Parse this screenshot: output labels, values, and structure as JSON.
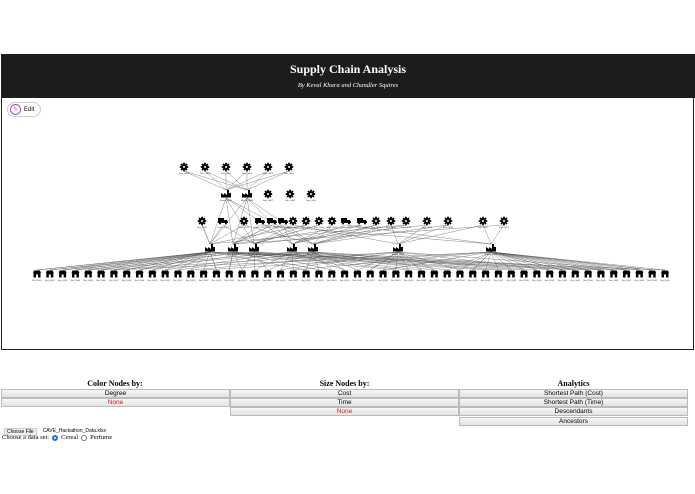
{
  "header": {
    "title": "Supply Chain Analysis",
    "subtitle": "By Keval Khara and Chandler Squires"
  },
  "graph": {
    "edit_label": "Edit",
    "layers": [
      {
        "icon": "gear-icon",
        "labels": [
          "Sup_0001",
          "Sup_0002",
          "Sup_0003",
          "Sup_0004",
          "Sup_0005",
          "Sup_0006"
        ]
      },
      {
        "icon": "mixed",
        "labels": [
          "Manuf_0001",
          "Manuf_0002",
          "Sup_0007",
          "Sup_0008",
          "Sup_0009"
        ]
      },
      {
        "icon": "mixed",
        "labels": [
          "Sup_0010",
          "Trans_0001",
          "Sup_0011",
          "Trans_0002",
          "Trans_0003",
          "Trans_0004",
          "Sup_0012",
          "Sup_0013",
          "Sup_0014",
          "Sup_0015",
          "Trans_0005",
          "Trans_0006",
          "Sup_0016",
          "Sup_0017",
          "Sup_0018",
          "Sup_0019",
          "Sup_0020",
          "Sup_0021",
          "Sup_0022",
          "Sup_0023",
          "Sup_0024"
        ]
      },
      {
        "icon": "factory-icon",
        "labels": [
          "Manuf_0003",
          "Manuf_0004",
          "Manuf_0005",
          "Manuf_0006",
          "Manuf_0007",
          "Manuf_0008",
          "Manuf_0009"
        ]
      },
      {
        "icon": "retail-icon",
        "labels": [
          "Ret_0001",
          "Ret_0002",
          "Ret_0003",
          "Ret_0004",
          "Ret_0005",
          "Ret_0006",
          "Ret_0007",
          "Ret_0008",
          "Ret_0009",
          "Ret_0010",
          "Ret_0011",
          "Ret_0012",
          "Ret_0013",
          "Ret_0014",
          "Ret_0015",
          "Ret_0016",
          "Ret_0017",
          "Ret_0018",
          "Ret_0019",
          "Ret_0020",
          "Ret_0021",
          "Ret_0022",
          "Ret_0023",
          "Ret_0024",
          "Ret_0025",
          "Ret_0026",
          "Ret_0027",
          "Ret_0028",
          "Ret_0029",
          "Ret_0030",
          "Ret_0031",
          "Ret_0032",
          "Ret_0033",
          "Ret_0034",
          "Ret_0035",
          "Ret_0036",
          "Ret_0037",
          "Ret_0038",
          "Ret_0039",
          "Ret_0040",
          "Ret_0041",
          "Ret_0042",
          "Ret_0043",
          "Ret_0044",
          "Ret_0045",
          "Ret_0046",
          "Ret_0047",
          "Ret_0048",
          "Ret_0049",
          "Ret_0050"
        ]
      }
    ]
  },
  "controls": {
    "color": {
      "title": "Color Nodes by:",
      "options": [
        "Degree",
        "None"
      ]
    },
    "size": {
      "title": "Size Nodes by:",
      "options": [
        "Cost",
        "Time",
        "None"
      ]
    },
    "analytics": {
      "title": "Analytics",
      "options": [
        "Shortest Path (Cost)",
        "Shortest Path (Time)",
        "Descendants",
        "Ancestors"
      ]
    }
  },
  "file": {
    "button_label": "Choose File",
    "file_name": "CAVE_Hackathon_Data.xlsx"
  },
  "dataset": {
    "label": "Choose a data set:",
    "options": [
      "Cereal",
      "Perfume"
    ],
    "selected": "Cereal"
  },
  "colors": {
    "header_bg": "#1c1c1c",
    "none_text": "#d02020",
    "radio_selected": "#1a6ee8",
    "edit_accent": "#a14cc8"
  }
}
